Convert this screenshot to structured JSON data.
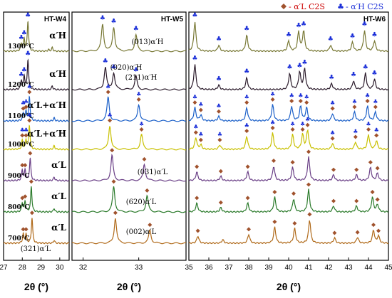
{
  "legend": [
    {
      "text": "- α′L C2S",
      "color": "#cc0000",
      "marker": "diamond"
    },
    {
      "text": "- α′H C2S",
      "color": "#1a2ed8",
      "marker": "club"
    }
  ],
  "colors": [
    "#4a4a4a",
    "#777733",
    "#2a1a2a",
    "#1a5fc8",
    "#c8c000",
    "#6a3f86",
    "#2a7a2a",
    "#b06a1a"
  ],
  "chart_data": [
    {
      "type": "line",
      "title": "HT-W4",
      "xlabel": "2θ (°)",
      "xlim": [
        27,
        30.5
      ],
      "xticks": [
        "27",
        "28",
        "29",
        "30"
      ],
      "temps": [
        "1300°C",
        "1200°C",
        "1100°C",
        "1000°C",
        "900°C",
        "800°C",
        "700°C"
      ],
      "phase_labels": [
        "α′H",
        "α′H",
        "α′L+α′H",
        "α′L+α′H",
        "α′L",
        "α′L",
        "α′L"
      ],
      "series": [
        {
          "peaks": [
            [
              27.95,
              0.25
            ],
            [
              28.1,
              0.4
            ],
            [
              28.3,
              1.0
            ],
            [
              29.4,
              0.05
            ],
            [
              29.6,
              0.12
            ]
          ]
        },
        {
          "peaks": [
            [
              27.95,
              0.3
            ],
            [
              28.1,
              0.45
            ],
            [
              28.3,
              1.0
            ],
            [
              29.6,
              0.12
            ]
          ]
        },
        {
          "peaks": [
            [
              28.05,
              0.25
            ],
            [
              28.2,
              0.3
            ],
            [
              28.38,
              0.8
            ],
            [
              29.7,
              0.1
            ]
          ]
        },
        {
          "peaks": [
            [
              28.0,
              0.3
            ],
            [
              28.2,
              0.3
            ],
            [
              28.38,
              0.8
            ],
            [
              29.7,
              0.12
            ]
          ]
        },
        {
          "peaks": [
            [
              28.0,
              0.35
            ],
            [
              28.15,
              0.35
            ],
            [
              28.42,
              0.75
            ],
            [
              29.7,
              0.12
            ]
          ]
        },
        {
          "peaks": [
            [
              28.0,
              0.3
            ],
            [
              28.15,
              0.35
            ],
            [
              28.48,
              0.85
            ],
            [
              29.7,
              0.12
            ]
          ]
        },
        {
          "peaks": [
            [
              28.05,
              0.3
            ],
            [
              28.2,
              0.3
            ],
            [
              28.52,
              0.85
            ],
            [
              29.7,
              0.1
            ]
          ]
        }
      ],
      "annotations": [
        "(321)α′L"
      ]
    },
    {
      "type": "line",
      "title": "HT-W5",
      "xlabel": "2θ (°)",
      "xlim": [
        31.8,
        33.85
      ],
      "xticks": [
        "32",
        "33"
      ],
      "series": [
        {
          "peaks": [
            [
              32.35,
              0.9
            ],
            [
              32.55,
              0.8
            ],
            [
              32.95,
              0.55
            ]
          ]
        },
        {
          "peaks": [
            [
              32.4,
              0.75
            ],
            [
              32.55,
              0.55
            ],
            [
              32.95,
              0.45
            ]
          ]
        },
        {
          "peaks": [
            [
              32.45,
              0.8
            ],
            [
              33.0,
              0.55
            ]
          ]
        },
        {
          "peaks": [
            [
              32.48,
              0.8
            ],
            [
              33.05,
              0.5
            ]
          ]
        },
        {
          "peaks": [
            [
              32.52,
              0.85
            ],
            [
              33.1,
              0.55
            ]
          ]
        },
        {
          "peaks": [
            [
              32.55,
              0.85
            ],
            [
              33.15,
              0.55
            ]
          ]
        },
        {
          "peaks": [
            [
              32.58,
              0.85
            ],
            [
              33.2,
              0.45
            ]
          ]
        }
      ],
      "annotations": [
        "(013)α′H",
        "(020)α′H",
        "(211)α′H",
        "(031)α′L",
        "(620)α′L",
        "(002)α′L"
      ]
    },
    {
      "type": "line",
      "title": "HT-W6",
      "xlabel": "2θ (°)",
      "xlim": [
        35,
        45
      ],
      "xticks": [
        "35",
        "36",
        "37",
        "38",
        "39",
        "40",
        "41",
        "42",
        "43",
        "44",
        "45"
      ],
      "series": [
        {
          "peaks": [
            [
              35.3,
              1.0
            ],
            [
              36.5,
              0.2
            ],
            [
              37.9,
              0.55
            ],
            [
              40.0,
              0.35
            ],
            [
              40.5,
              0.65
            ],
            [
              40.75,
              0.7
            ],
            [
              42.1,
              0.2
            ],
            [
              43.2,
              0.3
            ],
            [
              43.8,
              0.7
            ],
            [
              44.3,
              0.35
            ]
          ]
        },
        {
          "peaks": [
            [
              35.3,
              0.85
            ],
            [
              36.5,
              0.15
            ],
            [
              37.9,
              0.4
            ],
            [
              40.05,
              0.55
            ],
            [
              40.55,
              0.6
            ],
            [
              40.8,
              0.7
            ],
            [
              42.15,
              0.2
            ],
            [
              43.25,
              0.3
            ],
            [
              43.85,
              0.55
            ],
            [
              44.3,
              0.35
            ]
          ]
        },
        {
          "peaks": [
            [
              35.3,
              0.45
            ],
            [
              35.6,
              0.2
            ],
            [
              36.5,
              0.15
            ],
            [
              37.9,
              0.45
            ],
            [
              39.2,
              0.55
            ],
            [
              40.15,
              0.5
            ],
            [
              40.6,
              0.5
            ],
            [
              40.9,
              0.45
            ],
            [
              42.2,
              0.25
            ],
            [
              43.3,
              0.3
            ],
            [
              43.95,
              0.5
            ],
            [
              44.35,
              0.3
            ]
          ]
        },
        {
          "peaks": [
            [
              35.35,
              0.4
            ],
            [
              35.6,
              0.15
            ],
            [
              36.55,
              0.15
            ],
            [
              37.9,
              0.45
            ],
            [
              39.2,
              0.55
            ],
            [
              40.2,
              0.5
            ],
            [
              40.7,
              0.5
            ],
            [
              40.95,
              0.65
            ],
            [
              42.2,
              0.2
            ],
            [
              43.35,
              0.25
            ],
            [
              44.0,
              0.5
            ],
            [
              44.4,
              0.3
            ]
          ]
        },
        {
          "peaks": [
            [
              35.4,
              0.3
            ],
            [
              36.6,
              0.15
            ],
            [
              37.95,
              0.3
            ],
            [
              39.25,
              0.5
            ],
            [
              40.2,
              0.45
            ],
            [
              41.0,
              0.8
            ],
            [
              42.25,
              0.2
            ],
            [
              43.4,
              0.2
            ],
            [
              44.1,
              0.45
            ],
            [
              44.45,
              0.25
            ]
          ]
        },
        {
          "peaks": [
            [
              35.4,
              0.3
            ],
            [
              36.6,
              0.15
            ],
            [
              37.95,
              0.3
            ],
            [
              39.3,
              0.5
            ],
            [
              40.25,
              0.45
            ],
            [
              41.0,
              0.75
            ],
            [
              42.25,
              0.2
            ],
            [
              43.4,
              0.2
            ],
            [
              44.2,
              0.5
            ],
            [
              44.45,
              0.25
            ]
          ]
        },
        {
          "peaks": [
            [
              35.45,
              0.25
            ],
            [
              36.7,
              0.12
            ],
            [
              38.0,
              0.3
            ],
            [
              39.3,
              0.55
            ],
            [
              40.3,
              0.5
            ],
            [
              41.05,
              0.8
            ],
            [
              42.3,
              0.18
            ],
            [
              43.45,
              0.2
            ],
            [
              44.25,
              0.45
            ],
            [
              44.5,
              0.25
            ]
          ]
        }
      ]
    }
  ]
}
